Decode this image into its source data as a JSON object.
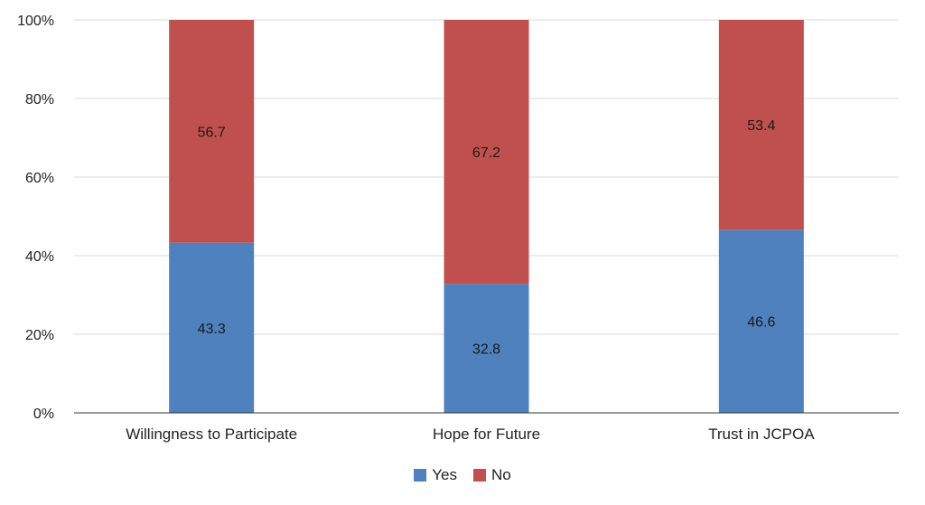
{
  "chart_data": {
    "type": "bar",
    "stacked": true,
    "categories": [
      "Willingness to Participate",
      "Hope for Future",
      "Trust in JCPOA"
    ],
    "series": [
      {
        "name": "Yes",
        "color": "#4e81bd",
        "values": [
          43.3,
          32.8,
          46.6
        ]
      },
      {
        "name": "No",
        "color": "#c0504d",
        "values": [
          56.7,
          67.2,
          53.4
        ]
      }
    ],
    "ylim": [
      0,
      100
    ],
    "yticks": [
      "0%",
      "20%",
      "40%",
      "60%",
      "80%",
      "100%"
    ],
    "grid": true,
    "legend_position": "bottom"
  }
}
